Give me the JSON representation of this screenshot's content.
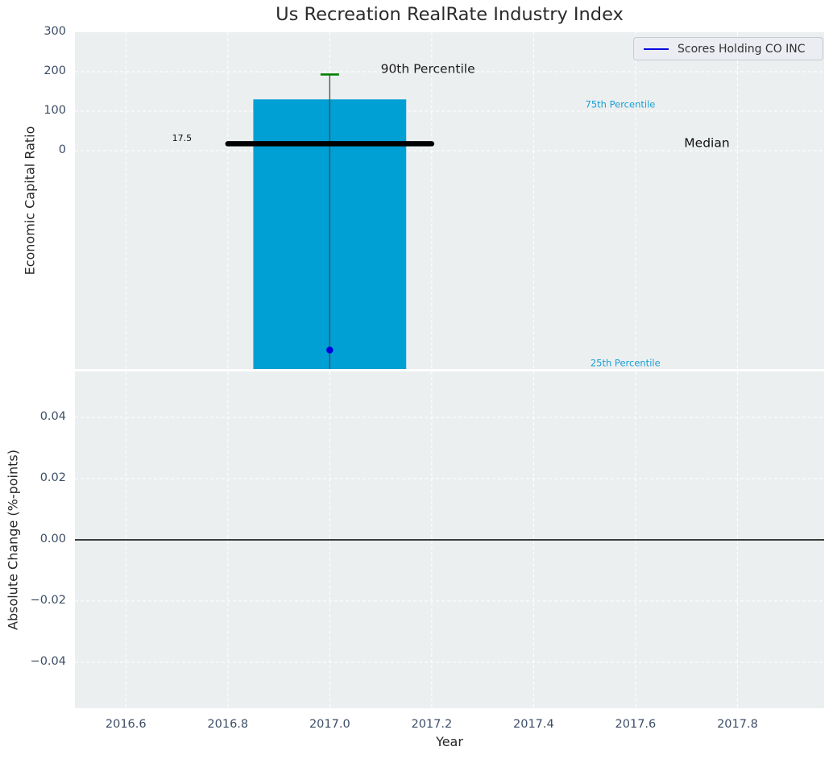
{
  "figure": {
    "background": "#ffffff",
    "axes_background": "#eceff0",
    "grid_color": "#ffffff",
    "tick_color": "#3d4e66"
  },
  "chart_data": [
    {
      "type": "bar",
      "title": "Us Recreation RealRate Industry Index",
      "ylabel": "Economic Capital Ratio",
      "xlim": [
        2016.5,
        2017.97
      ],
      "ylim": [
        -553,
        300
      ],
      "grid": true,
      "yticks": [
        0,
        100,
        200,
        300
      ],
      "ytick_labels": [
        "0",
        "100",
        "200",
        "300"
      ],
      "xgrid_ticks": [
        2016.6,
        2016.8,
        2017.0,
        2017.2,
        2017.4,
        2017.6,
        2017.8
      ],
      "box": {
        "x": 2017.0,
        "bar_width": 0.3,
        "p75": 130,
        "p25": -553,
        "p25_clipped_at_axis_bottom": true,
        "p90": 193,
        "median": 17.5,
        "median_label": "17.5",
        "median_x1": 2016.8,
        "median_x2": 2017.2
      },
      "series": [
        {
          "name": "Scores Holding CO INC",
          "x": 2017.0,
          "y": -505,
          "color": "#0000e1",
          "marker": "dot"
        }
      ],
      "annotations": [
        {
          "text": "90th Percentile",
          "x": 2017.1,
          "y": 206,
          "ha": "left",
          "color": "#1c1c1c",
          "size": 15.5
        },
        {
          "text": "75th Percentile",
          "x": 2017.57,
          "y": 116,
          "ha": "center",
          "color": "#18a0d4",
          "size": 11.5
        },
        {
          "text": "Median",
          "x": 2017.74,
          "y": 18,
          "ha": "center",
          "color": "#111111",
          "size": 15.5
        },
        {
          "text": "25th Percentile",
          "x": 2017.58,
          "y": -539,
          "ha": "center",
          "color": "#18a0d4",
          "size": 11.5
        },
        {
          "text": "17.5",
          "x": 2016.71,
          "y": 30,
          "ha": "center",
          "color": "#111111",
          "size": 11
        }
      ],
      "legend": {
        "label": "Scores Holding CO INC",
        "line_color": "#0000e1",
        "position": "upper right"
      },
      "colors": {
        "bar": "#009fd4",
        "median_line": "#000000",
        "whisker": "#4a4a4a",
        "p90_cap": "#008000"
      }
    },
    {
      "type": "line",
      "ylabel": "Absolute Change (%-points)",
      "xlabel": "Year",
      "xlim": [
        2016.5,
        2017.97
      ],
      "ylim": [
        -0.055,
        0.055
      ],
      "grid": true,
      "yticks": [
        -0.04,
        -0.02,
        0.0,
        0.02,
        0.04
      ],
      "ytick_labels": [
        "−0.04",
        "−0.02",
        "0.00",
        "0.02",
        "0.04"
      ],
      "xticks": [
        2016.6,
        2016.8,
        2017.0,
        2017.2,
        2017.4,
        2017.6,
        2017.8
      ],
      "xtick_labels": [
        "2016.6",
        "2016.8",
        "2017.0",
        "2017.2",
        "2017.4",
        "2017.6",
        "2017.8"
      ],
      "zero_line": {
        "y": 0.0,
        "color": "#000000"
      }
    }
  ]
}
